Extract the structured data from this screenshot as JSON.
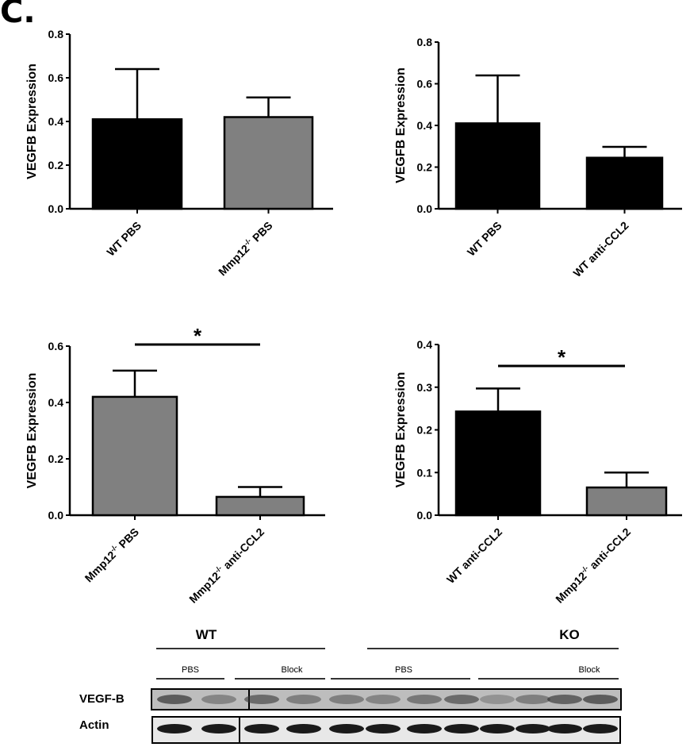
{
  "panel_label": "C.",
  "chart_data": [
    {
      "type": "bar",
      "ylabel": "VEGFB Expression",
      "ylim": [
        0,
        0.8
      ],
      "yticks": [
        "0.0",
        "0.2",
        "0.4",
        "0.6",
        "0.8"
      ],
      "categories": [
        "WT PBS",
        "Mmp12-/- PBS"
      ],
      "values": [
        0.41,
        0.42
      ],
      "errors": [
        0.23,
        0.09
      ],
      "colors": [
        "#000000",
        "#808080"
      ],
      "significance": null
    },
    {
      "type": "bar",
      "ylabel": "VEGFB Expression",
      "ylim": [
        0,
        0.8
      ],
      "yticks": [
        "0.0",
        "0.2",
        "0.4",
        "0.6",
        "0.8"
      ],
      "categories": [
        "WT PBS",
        "WT anti-CCL2"
      ],
      "values": [
        0.41,
        0.245
      ],
      "errors": [
        0.23,
        0.052
      ],
      "colors": [
        "#000000",
        "#000000"
      ],
      "significance": null
    },
    {
      "type": "bar",
      "ylabel": "VEGFB Expression",
      "ylim": [
        0,
        0.6
      ],
      "yticks": [
        "0.0",
        "0.2",
        "0.4",
        "0.6"
      ],
      "categories": [
        "Mmp12-/- PBS",
        "Mmp12-/- anti-CCL2"
      ],
      "values": [
        0.42,
        0.065
      ],
      "errors": [
        0.093,
        0.035
      ],
      "colors": [
        "#808080",
        "#808080"
      ],
      "significance": "*"
    },
    {
      "type": "bar",
      "ylabel": "VEGFB Expression",
      "ylim": [
        0,
        0.4
      ],
      "yticks": [
        "0.0",
        "0.1",
        "0.2",
        "0.3",
        "0.4"
      ],
      "categories": [
        "WT anti-CCL2",
        "Mmp12-/- anti-CCL2"
      ],
      "values": [
        0.243,
        0.065
      ],
      "errors": [
        0.054,
        0.035
      ],
      "colors": [
        "#000000",
        "#808080"
      ],
      "significance": "*"
    }
  ],
  "blot": {
    "groups": [
      "WT",
      "KO"
    ],
    "subgroups": [
      "PBS",
      "Block",
      "PBS",
      "Block"
    ],
    "rows": [
      "VEGF-B",
      "Actin"
    ]
  }
}
